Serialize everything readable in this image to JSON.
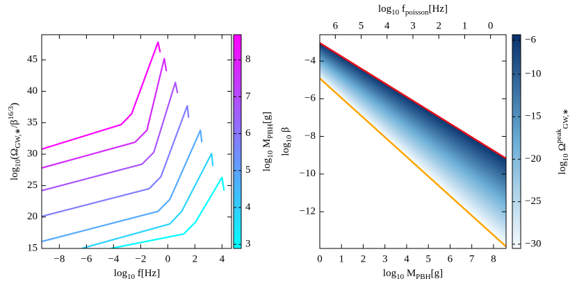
{
  "chart_data": [
    {
      "type": "line",
      "xlabel": [
        {
          "text": "log"
        },
        {
          "text": "10",
          "script": "sub"
        },
        {
          "text": " f"
        },
        {
          "text": "[Hz]"
        }
      ],
      "ylabel": [
        {
          "text": "log"
        },
        {
          "text": "10",
          "script": "sub"
        },
        {
          "text": "(Ω"
        },
        {
          "text": "GW,∗",
          "script": "sub"
        },
        {
          "text": "/β"
        },
        {
          "text": "16/3",
          "script": "sup"
        },
        {
          "text": ")"
        }
      ],
      "xlim": [
        -9.3,
        4.7
      ],
      "ylim": [
        15,
        49
      ],
      "xticks": [
        {
          "value": -8,
          "label": "−8"
        },
        {
          "value": -6,
          "label": "−6"
        },
        {
          "value": -4,
          "label": "−4"
        },
        {
          "value": -2,
          "label": "−2"
        },
        0,
        2,
        4
      ],
      "yticks": [
        15,
        20,
        25,
        30,
        35,
        40,
        45
      ],
      "series": [
        {
          "color": "#00ffff",
          "x": [
            -4.2,
            1.18,
            2.05,
            4.0,
            4.15
          ],
          "values": [
            15,
            17.3,
            19.2,
            26.3,
            24.2
          ]
        },
        {
          "color": "#2ad5ff",
          "x": [
            -6.36,
            0.15,
            1.03,
            3.23,
            3.33
          ],
          "values": [
            15,
            18.9,
            20.9,
            30.1,
            28.1
          ]
        },
        {
          "color": "#55aaff",
          "x": [
            -9.3,
            -0.72,
            0.15,
            2.41,
            2.51
          ],
          "values": [
            16.1,
            20.9,
            22.8,
            33.8,
            31.9
          ]
        },
        {
          "color": "#807fff",
          "x": [
            -9.3,
            -1.38,
            -0.51,
            1.44,
            1.54
          ],
          "values": [
            20.1,
            24.5,
            26.4,
            37.7,
            35.8
          ]
        },
        {
          "color": "#aa55ff",
          "x": [
            -9.3,
            -1.9,
            -1.03,
            0.56,
            0.72
          ],
          "values": [
            24.2,
            28.4,
            30.3,
            41.4,
            39.7
          ]
        },
        {
          "color": "#d52aff",
          "x": [
            -9.3,
            -2.41,
            -1.54,
            -0.26,
            -0.1
          ],
          "values": [
            27.8,
            31.9,
            33.8,
            45.2,
            43.2
          ]
        },
        {
          "color": "#ff00ff",
          "x": [
            -9.3,
            -3.44,
            -2.67,
            -0.72,
            -0.56
          ],
          "values": [
            30.8,
            34.7,
            36.4,
            47.8,
            46.2
          ]
        }
      ],
      "colorbar": {
        "label": [
          {
            "text": "log"
          },
          {
            "text": "10",
            "script": "sub"
          },
          {
            "text": " M"
          },
          {
            "text": "PBH",
            "script": "sub"
          },
          {
            "text": "[g]"
          }
        ],
        "lim": [
          2.89,
          8.68
        ],
        "ticks": [
          3,
          4,
          5,
          6,
          7,
          8
        ],
        "colors": [
          "#00ffff",
          "#ff00ff"
        ]
      }
    },
    {
      "type": "contour",
      "xlabel": [
        {
          "text": "log"
        },
        {
          "text": "10",
          "script": "sub"
        },
        {
          "text": " M"
        },
        {
          "text": "PBH",
          "script": "sub"
        },
        {
          "text": "[g]"
        }
      ],
      "ylabel": [
        {
          "text": "log"
        },
        {
          "text": "10",
          "script": "sub"
        },
        {
          "text": " β"
        }
      ],
      "x2label": [
        {
          "text": "log"
        },
        {
          "text": "10",
          "script": "sub"
        },
        {
          "text": " f"
        },
        {
          "text": "poisson",
          "script": "sub"
        },
        {
          "text": "[Hz]"
        }
      ],
      "xlim": [
        0,
        8.58
      ],
      "ylim": [
        -13.95,
        -2.6
      ],
      "xticks": [
        0,
        1,
        2,
        3,
        4,
        5,
        6,
        7,
        8
      ],
      "yticks": [
        {
          "value": -12,
          "label": "−12"
        },
        {
          "value": -10,
          "label": "−10"
        },
        {
          "value": -8,
          "label": "−8"
        },
        {
          "value": -6,
          "label": "−6"
        },
        {
          "value": -4,
          "label": "−4"
        }
      ],
      "x2lim": [
        6.6,
        -0.6
      ],
      "x2ticks": [
        6,
        5,
        4,
        3,
        2,
        1,
        0
      ],
      "series": [
        {
          "color": "#ffa500",
          "x": [
            0,
            8.58
          ],
          "values": [
            -4.92,
            -13.85
          ]
        },
        {
          "color": "#e8101a",
          "x": [
            0,
            8.58
          ],
          "values": [
            -3.04,
            -9.17
          ]
        }
      ],
      "levels": [
        -30,
        -29,
        -28,
        -27,
        -26,
        -25,
        -24,
        -23,
        -22,
        -21,
        -20,
        -19,
        -18,
        -17,
        -16,
        -15,
        -14,
        -13,
        -12,
        -11,
        -10,
        -9,
        -8,
        -7,
        -6
      ],
      "colorbar": {
        "label": [
          {
            "text": "log"
          },
          {
            "text": "10",
            "script": "sub"
          },
          {
            "text": " Ω"
          },
          {
            "text": "peak",
            "script": "sup"
          },
          {
            "text": "GW,∗",
            "script": "sub"
          }
        ],
        "lim": [
          -30.5,
          -5.35
        ],
        "ticks": [
          {
            "value": -30,
            "label": "−30"
          },
          {
            "value": -25,
            "label": "−25"
          },
          {
            "value": -20,
            "label": "−20"
          },
          {
            "value": -15,
            "label": "−15"
          },
          {
            "value": -10,
            "label": "−10"
          },
          {
            "value": -6,
            "label": "−6"
          }
        ],
        "colors": [
          "#f7fbff",
          "#6baed6",
          "#08306b"
        ]
      }
    }
  ]
}
